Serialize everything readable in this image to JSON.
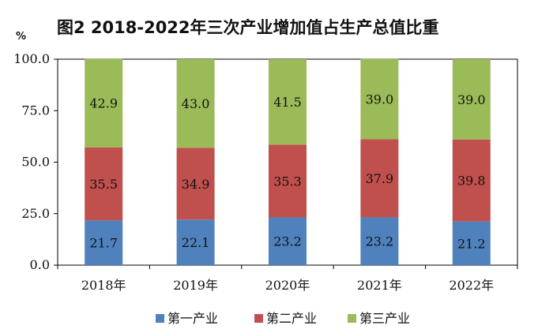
{
  "chart_data": {
    "type": "bar",
    "stacked": true,
    "title": "图2   2018-2022年三次产业增加值占生产总值比重",
    "unit_label": "%",
    "categories": [
      "2018年",
      "2019年",
      "2020年",
      "2021年",
      "2022年"
    ],
    "ylim": [
      0,
      100
    ],
    "yticks": [
      "0.0",
      "25.0",
      "50.0",
      "75.0",
      "100.0"
    ],
    "series": [
      {
        "name": "第一产业",
        "color": "#4f81bd",
        "values": [
          21.7,
          22.1,
          23.2,
          23.2,
          21.2
        ],
        "labels": [
          "21.7",
          "22.1",
          "23.2",
          "23.2",
          "21.2"
        ]
      },
      {
        "name": "第二产业",
        "color": "#c0504d",
        "values": [
          35.5,
          34.9,
          35.3,
          37.9,
          39.8
        ],
        "labels": [
          "35.5",
          "34.9",
          "35.3",
          "37.9",
          "39.8"
        ]
      },
      {
        "name": "第三产业",
        "color": "#9bbb59",
        "values": [
          42.9,
          43.0,
          41.5,
          39.0,
          39.0
        ],
        "labels": [
          "42.9",
          "43.0",
          "41.5",
          "39.0",
          "39.0"
        ]
      }
    ],
    "grid": false,
    "legend_position": "bottom"
  }
}
